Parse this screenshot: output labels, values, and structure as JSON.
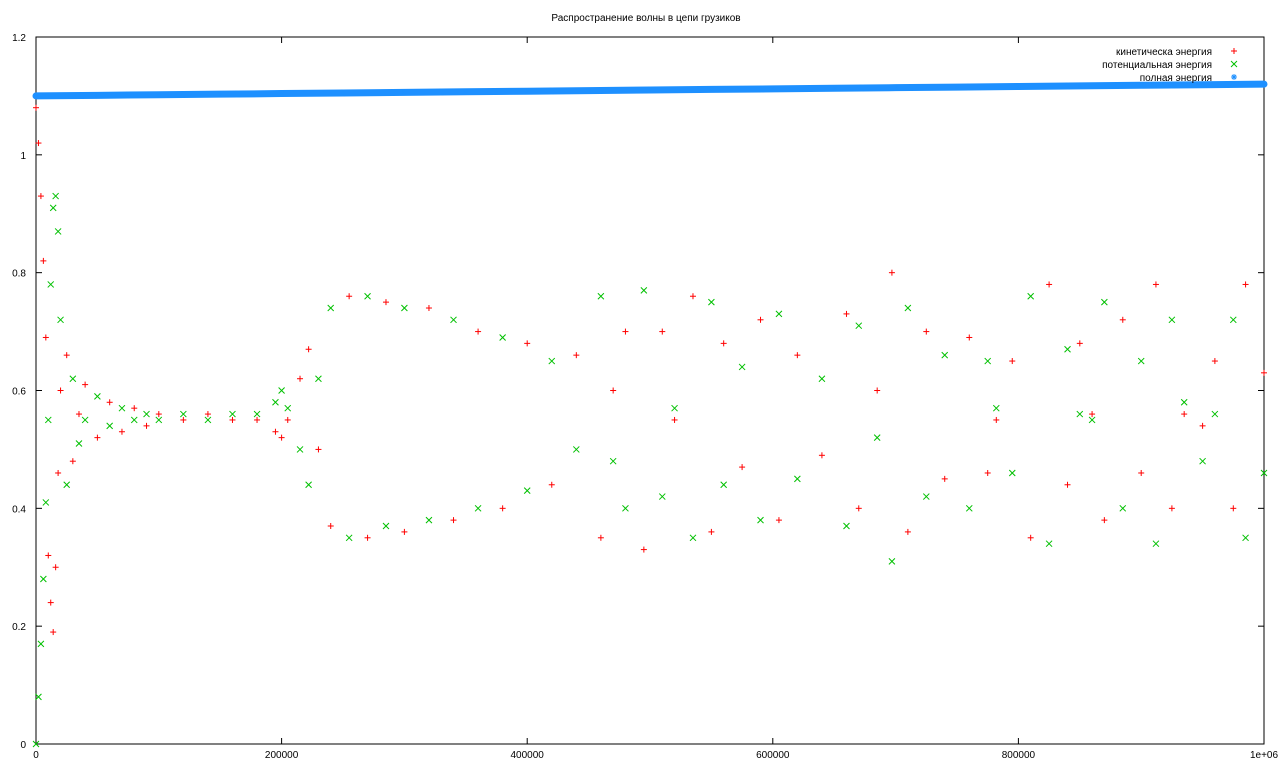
{
  "chart_data": {
    "type": "scatter",
    "title": "Распространение волны в цепи грузиков",
    "xlabel": "",
    "ylabel": "",
    "xlim": [
      0,
      1000000
    ],
    "ylim": [
      0,
      1.2
    ],
    "x_ticks": [
      0,
      200000,
      400000,
      600000,
      800000,
      1000000
    ],
    "x_tick_labels": [
      "0",
      "200000",
      "400000",
      "600000",
      "800000",
      "1e+06"
    ],
    "y_ticks": [
      0,
      0.2,
      0.4,
      0.6,
      0.8,
      1,
      1.2
    ],
    "y_tick_labels": [
      "0",
      "0.2",
      "0.4",
      "0.6",
      "0.8",
      "1",
      "1.2"
    ],
    "grid": false,
    "legend_position": "top-right",
    "series": [
      {
        "name": "кинетическа энергия",
        "marker": "+",
        "color": "#ff0000",
        "x": [
          0,
          2000,
          4000,
          6000,
          8000,
          10000,
          12000,
          14000,
          16000,
          18000,
          20000,
          25000,
          30000,
          35000,
          40000,
          50000,
          60000,
          70000,
          80000,
          90000,
          100000,
          120000,
          140000,
          160000,
          180000,
          195000,
          200000,
          205000,
          215000,
          222000,
          230000,
          240000,
          255000,
          270000,
          285000,
          300000,
          320000,
          340000,
          360000,
          380000,
          400000,
          420000,
          440000,
          460000,
          470000,
          480000,
          495000,
          510000,
          520000,
          535000,
          550000,
          560000,
          575000,
          590000,
          605000,
          620000,
          640000,
          660000,
          670000,
          685000,
          697000,
          710000,
          725000,
          740000,
          760000,
          775000,
          782000,
          795000,
          810000,
          825000,
          840000,
          850000,
          860000,
          870000,
          885000,
          900000,
          912000,
          925000,
          935000,
          950000,
          960000,
          975000,
          985000,
          1000000
        ],
        "y": [
          1.08,
          1.02,
          0.93,
          0.82,
          0.69,
          0.32,
          0.24,
          0.19,
          0.3,
          0.46,
          0.6,
          0.66,
          0.48,
          0.56,
          0.61,
          0.52,
          0.58,
          0.53,
          0.57,
          0.54,
          0.56,
          0.55,
          0.56,
          0.55,
          0.55,
          0.53,
          0.52,
          0.55,
          0.62,
          0.67,
          0.5,
          0.37,
          0.76,
          0.35,
          0.75,
          0.36,
          0.74,
          0.38,
          0.7,
          0.4,
          0.68,
          0.44,
          0.66,
          0.35,
          0.6,
          0.7,
          0.33,
          0.7,
          0.55,
          0.76,
          0.36,
          0.68,
          0.47,
          0.72,
          0.38,
          0.66,
          0.49,
          0.73,
          0.4,
          0.6,
          0.8,
          0.36,
          0.7,
          0.45,
          0.69,
          0.46,
          0.55,
          0.65,
          0.35,
          0.78,
          0.44,
          0.68,
          0.56,
          0.38,
          0.72,
          0.46,
          0.78,
          0.4,
          0.56,
          0.54,
          0.65,
          0.4,
          0.78,
          0.63
        ]
      },
      {
        "name": "потенциальная энергия",
        "marker": "x",
        "color": "#00c000",
        "x": [
          0,
          2000,
          4000,
          6000,
          8000,
          10000,
          12000,
          14000,
          16000,
          18000,
          20000,
          25000,
          30000,
          35000,
          40000,
          50000,
          60000,
          70000,
          80000,
          90000,
          100000,
          120000,
          140000,
          160000,
          180000,
          195000,
          200000,
          205000,
          215000,
          222000,
          230000,
          240000,
          255000,
          270000,
          285000,
          300000,
          320000,
          340000,
          360000,
          380000,
          400000,
          420000,
          440000,
          460000,
          470000,
          480000,
          495000,
          510000,
          520000,
          535000,
          550000,
          560000,
          575000,
          590000,
          605000,
          620000,
          640000,
          660000,
          670000,
          685000,
          697000,
          710000,
          725000,
          740000,
          760000,
          775000,
          782000,
          795000,
          810000,
          825000,
          840000,
          850000,
          860000,
          870000,
          885000,
          900000,
          912000,
          925000,
          935000,
          950000,
          960000,
          975000,
          985000,
          1000000
        ],
        "y": [
          0.0,
          0.08,
          0.17,
          0.28,
          0.41,
          0.55,
          0.78,
          0.91,
          0.93,
          0.87,
          0.72,
          0.44,
          0.62,
          0.51,
          0.55,
          0.59,
          0.54,
          0.57,
          0.55,
          0.56,
          0.55,
          0.56,
          0.55,
          0.56,
          0.56,
          0.58,
          0.6,
          0.57,
          0.5,
          0.44,
          0.62,
          0.74,
          0.35,
          0.76,
          0.37,
          0.74,
          0.38,
          0.72,
          0.4,
          0.69,
          0.43,
          0.65,
          0.5,
          0.76,
          0.48,
          0.4,
          0.77,
          0.42,
          0.57,
          0.35,
          0.75,
          0.44,
          0.64,
          0.38,
          0.73,
          0.45,
          0.62,
          0.37,
          0.71,
          0.52,
          0.31,
          0.74,
          0.42,
          0.66,
          0.4,
          0.65,
          0.57,
          0.46,
          0.76,
          0.34,
          0.67,
          0.56,
          0.55,
          0.75,
          0.4,
          0.65,
          0.34,
          0.72,
          0.58,
          0.48,
          0.56,
          0.72,
          0.35,
          0.46
        ]
      },
      {
        "name": "полная энергия",
        "marker": "*",
        "color": "#1e90ff",
        "x": [
          0,
          50000,
          100000,
          150000,
          200000,
          250000,
          300000,
          350000,
          400000,
          450000,
          500000,
          550000,
          600000,
          650000,
          700000,
          750000,
          800000,
          850000,
          900000,
          950000,
          1000000
        ],
        "y": [
          1.1,
          1.101,
          1.102,
          1.103,
          1.104,
          1.105,
          1.106,
          1.107,
          1.108,
          1.109,
          1.11,
          1.111,
          1.112,
          1.113,
          1.114,
          1.115,
          1.116,
          1.117,
          1.118,
          1.119,
          1.12
        ]
      }
    ]
  }
}
